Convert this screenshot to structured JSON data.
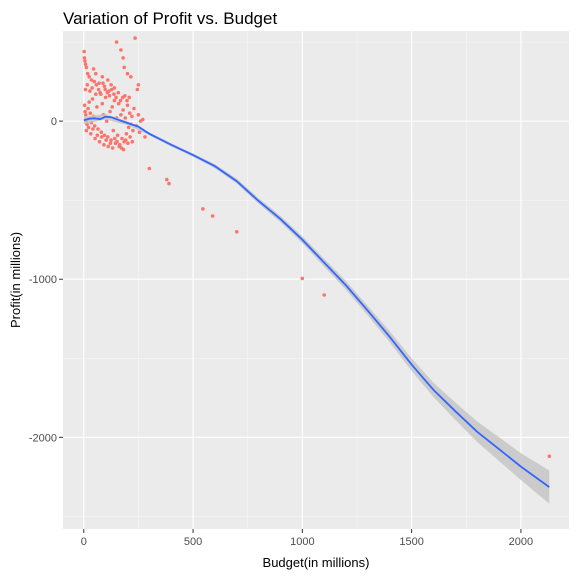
{
  "chart_data": {
    "type": "scatter",
    "title": "Variation of Profit vs. Budget",
    "xlabel": "Budget(in millions)",
    "ylabel": "Profit(in millions)",
    "xlim": [
      -95,
      2220
    ],
    "ylim": [
      -2580,
      570
    ],
    "x_ticks": [
      0,
      500,
      1000,
      1500,
      2000
    ],
    "y_ticks": [
      0,
      -1000,
      -2000
    ],
    "grid": true,
    "colors": {
      "background": "#ebebeb",
      "grid_major": "#ffffff",
      "points": "#f8766d",
      "smooth_line": "#3366ff",
      "ribbon": "#c6c6c6",
      "tick": "#333333"
    },
    "points": [
      [
        2,
        440
      ],
      [
        3,
        400
      ],
      [
        5,
        380
      ],
      [
        8,
        360
      ],
      [
        12,
        340
      ],
      [
        18,
        300
      ],
      [
        25,
        280
      ],
      [
        35,
        260
      ],
      [
        45,
        330
      ],
      [
        55,
        300
      ],
      [
        70,
        240
      ],
      [
        85,
        280
      ],
      [
        95,
        220
      ],
      [
        110,
        260
      ],
      [
        125,
        230
      ],
      [
        140,
        210
      ],
      [
        150,
        500
      ],
      [
        170,
        450
      ],
      [
        180,
        400
      ],
      [
        185,
        340
      ],
      [
        200,
        300
      ],
      [
        215,
        280
      ],
      [
        235,
        525
      ],
      [
        245,
        200
      ],
      [
        250,
        230
      ],
      [
        4,
        100
      ],
      [
        6,
        60
      ],
      [
        9,
        40
      ],
      [
        12,
        0
      ],
      [
        15,
        -20
      ],
      [
        20,
        80
      ],
      [
        25,
        120
      ],
      [
        30,
        50
      ],
      [
        35,
        -10
      ],
      [
        40,
        140
      ],
      [
        45,
        30
      ],
      [
        50,
        -30
      ],
      [
        55,
        170
      ],
      [
        60,
        90
      ],
      [
        65,
        -50
      ],
      [
        70,
        20
      ],
      [
        75,
        180
      ],
      [
        80,
        -70
      ],
      [
        85,
        110
      ],
      [
        90,
        40
      ],
      [
        95,
        -90
      ],
      [
        100,
        150
      ],
      [
        105,
        0
      ],
      [
        110,
        -100
      ],
      [
        115,
        190
      ],
      [
        120,
        60
      ],
      [
        125,
        -120
      ],
      [
        130,
        90
      ],
      [
        135,
        -60
      ],
      [
        140,
        130
      ],
      [
        145,
        -140
      ],
      [
        150,
        20
      ],
      [
        155,
        -90
      ],
      [
        160,
        110
      ],
      [
        165,
        -150
      ],
      [
        170,
        40
      ],
      [
        175,
        -110
      ],
      [
        180,
        70
      ],
      [
        185,
        -130
      ],
      [
        190,
        20
      ],
      [
        195,
        -80
      ],
      [
        200,
        100
      ],
      [
        205,
        -40
      ],
      [
        210,
        50
      ],
      [
        215,
        -20
      ],
      [
        220,
        30
      ],
      [
        225,
        -60
      ],
      [
        230,
        80
      ],
      [
        240,
        -30
      ],
      [
        250,
        40
      ],
      [
        255,
        -70
      ],
      [
        260,
        0
      ],
      [
        270,
        10
      ],
      [
        280,
        -100
      ],
      [
        8,
        200
      ],
      [
        16,
        230
      ],
      [
        28,
        190
      ],
      [
        38,
        210
      ],
      [
        48,
        250
      ],
      [
        58,
        230
      ],
      [
        68,
        200
      ],
      [
        78,
        170
      ],
      [
        88,
        240
      ],
      [
        98,
        200
      ],
      [
        108,
        180
      ],
      [
        118,
        160
      ],
      [
        128,
        200
      ],
      [
        138,
        170
      ],
      [
        148,
        150
      ],
      [
        158,
        180
      ],
      [
        168,
        130
      ],
      [
        178,
        150
      ],
      [
        188,
        160
      ],
      [
        198,
        130
      ],
      [
        208,
        150
      ],
      [
        12,
        -60
      ],
      [
        22,
        -40
      ],
      [
        32,
        -80
      ],
      [
        42,
        -50
      ],
      [
        52,
        -110
      ],
      [
        62,
        -90
      ],
      [
        72,
        -130
      ],
      [
        82,
        -100
      ],
      [
        92,
        -150
      ],
      [
        102,
        -120
      ],
      [
        112,
        -160
      ],
      [
        122,
        -140
      ],
      [
        132,
        -170
      ],
      [
        142,
        -110
      ],
      [
        152,
        -130
      ],
      [
        162,
        -160
      ],
      [
        172,
        -170
      ],
      [
        182,
        -180
      ],
      [
        192,
        -120
      ],
      [
        202,
        -140
      ],
      [
        212,
        -100
      ],
      [
        222,
        -130
      ],
      [
        300,
        -300
      ],
      [
        380,
        -370
      ],
      [
        390,
        -395
      ],
      [
        545,
        -555
      ],
      [
        590,
        -600
      ],
      [
        700,
        -700
      ],
      [
        1000,
        -995
      ],
      [
        1100,
        -1100
      ],
      [
        2130,
        -2120
      ]
    ],
    "smooth_line": [
      [
        0,
        5
      ],
      [
        25,
        15
      ],
      [
        50,
        18
      ],
      [
        75,
        12
      ],
      [
        100,
        28
      ],
      [
        125,
        25
      ],
      [
        150,
        12
      ],
      [
        175,
        0
      ],
      [
        200,
        -12
      ],
      [
        250,
        -35
      ],
      [
        300,
        -80
      ],
      [
        400,
        -150
      ],
      [
        500,
        -215
      ],
      [
        600,
        -285
      ],
      [
        700,
        -380
      ],
      [
        800,
        -505
      ],
      [
        900,
        -620
      ],
      [
        1000,
        -750
      ],
      [
        1100,
        -895
      ],
      [
        1200,
        -1040
      ],
      [
        1300,
        -1200
      ],
      [
        1400,
        -1365
      ],
      [
        1500,
        -1540
      ],
      [
        1600,
        -1700
      ],
      [
        1700,
        -1835
      ],
      [
        1800,
        -1965
      ],
      [
        1900,
        -2075
      ],
      [
        2000,
        -2185
      ],
      [
        2130,
        -2315
      ]
    ],
    "smooth_band": [
      [
        0,
        30,
        -20
      ],
      [
        100,
        45,
        10
      ],
      [
        200,
        0,
        -25
      ],
      [
        300,
        -70,
        -90
      ],
      [
        400,
        -140,
        -160
      ],
      [
        500,
        -205,
        -225
      ],
      [
        600,
        -272,
        -298
      ],
      [
        700,
        -365,
        -395
      ],
      [
        800,
        -487,
        -523
      ],
      [
        900,
        -600,
        -640
      ],
      [
        1000,
        -728,
        -772
      ],
      [
        1100,
        -870,
        -920
      ],
      [
        1200,
        -1012,
        -1068
      ],
      [
        1300,
        -1170,
        -1230
      ],
      [
        1400,
        -1330,
        -1400
      ],
      [
        1500,
        -1500,
        -1580
      ],
      [
        1600,
        -1655,
        -1745
      ],
      [
        1700,
        -1780,
        -1890
      ],
      [
        1800,
        -1900,
        -2030
      ],
      [
        1900,
        -2000,
        -2150
      ],
      [
        2000,
        -2100,
        -2270
      ],
      [
        2130,
        -2210,
        -2420
      ]
    ]
  }
}
